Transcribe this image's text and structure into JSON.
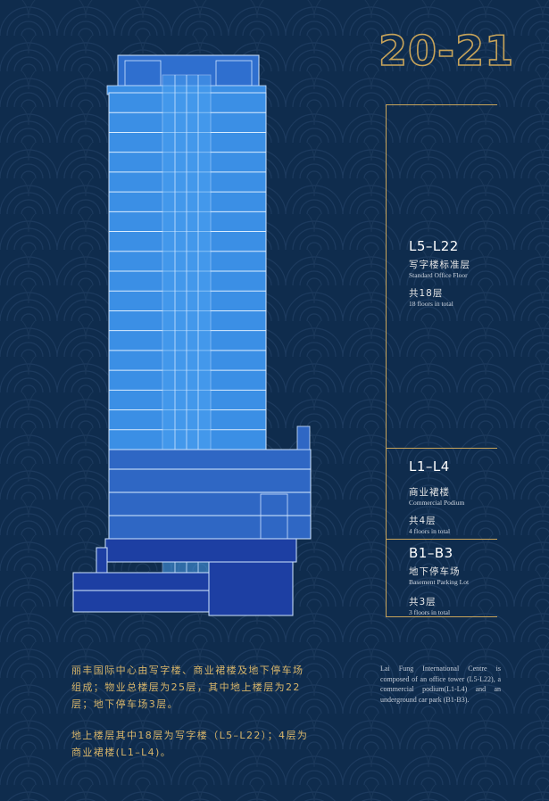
{
  "page_number": "20-21",
  "colors": {
    "background": "#0f2c4d",
    "gold": "#c8a45a",
    "office_blue": "#3b8fe5",
    "podium_blue": "#2f67c4",
    "basement_blue": "#1d3fa3"
  },
  "sections": [
    {
      "title": "L5–L22",
      "cn": "写字楼标准层",
      "en": "Standard  Office Floor",
      "count_cn": "共18层",
      "count_en": "18 floors in total"
    },
    {
      "title": "L1–L4",
      "cn": "商业裙楼",
      "en": "Commercial Podium",
      "count_cn": "共4层",
      "count_en": "4 floors in total"
    },
    {
      "title": "B1–B3",
      "cn": "地下停车场",
      "en": "Basement Parking Lot",
      "count_cn": "共3层",
      "count_en": "3 floors in total"
    }
  ],
  "description_cn": [
    "丽丰国际中心由写字楼、商业裙楼及地下停车场组成；物业总楼层为25层，其中地上楼层为22层；地下停车场3层。",
    "地上楼层其中18层为写字楼（L5–L22）；4层为商业裙楼(L1–L4)。"
  ],
  "description_en": "Lai Fung International Centre is composed of an office tower (L5-L22), a commercial podium(L1-L4) and an underground car park (B1-B3)."
}
